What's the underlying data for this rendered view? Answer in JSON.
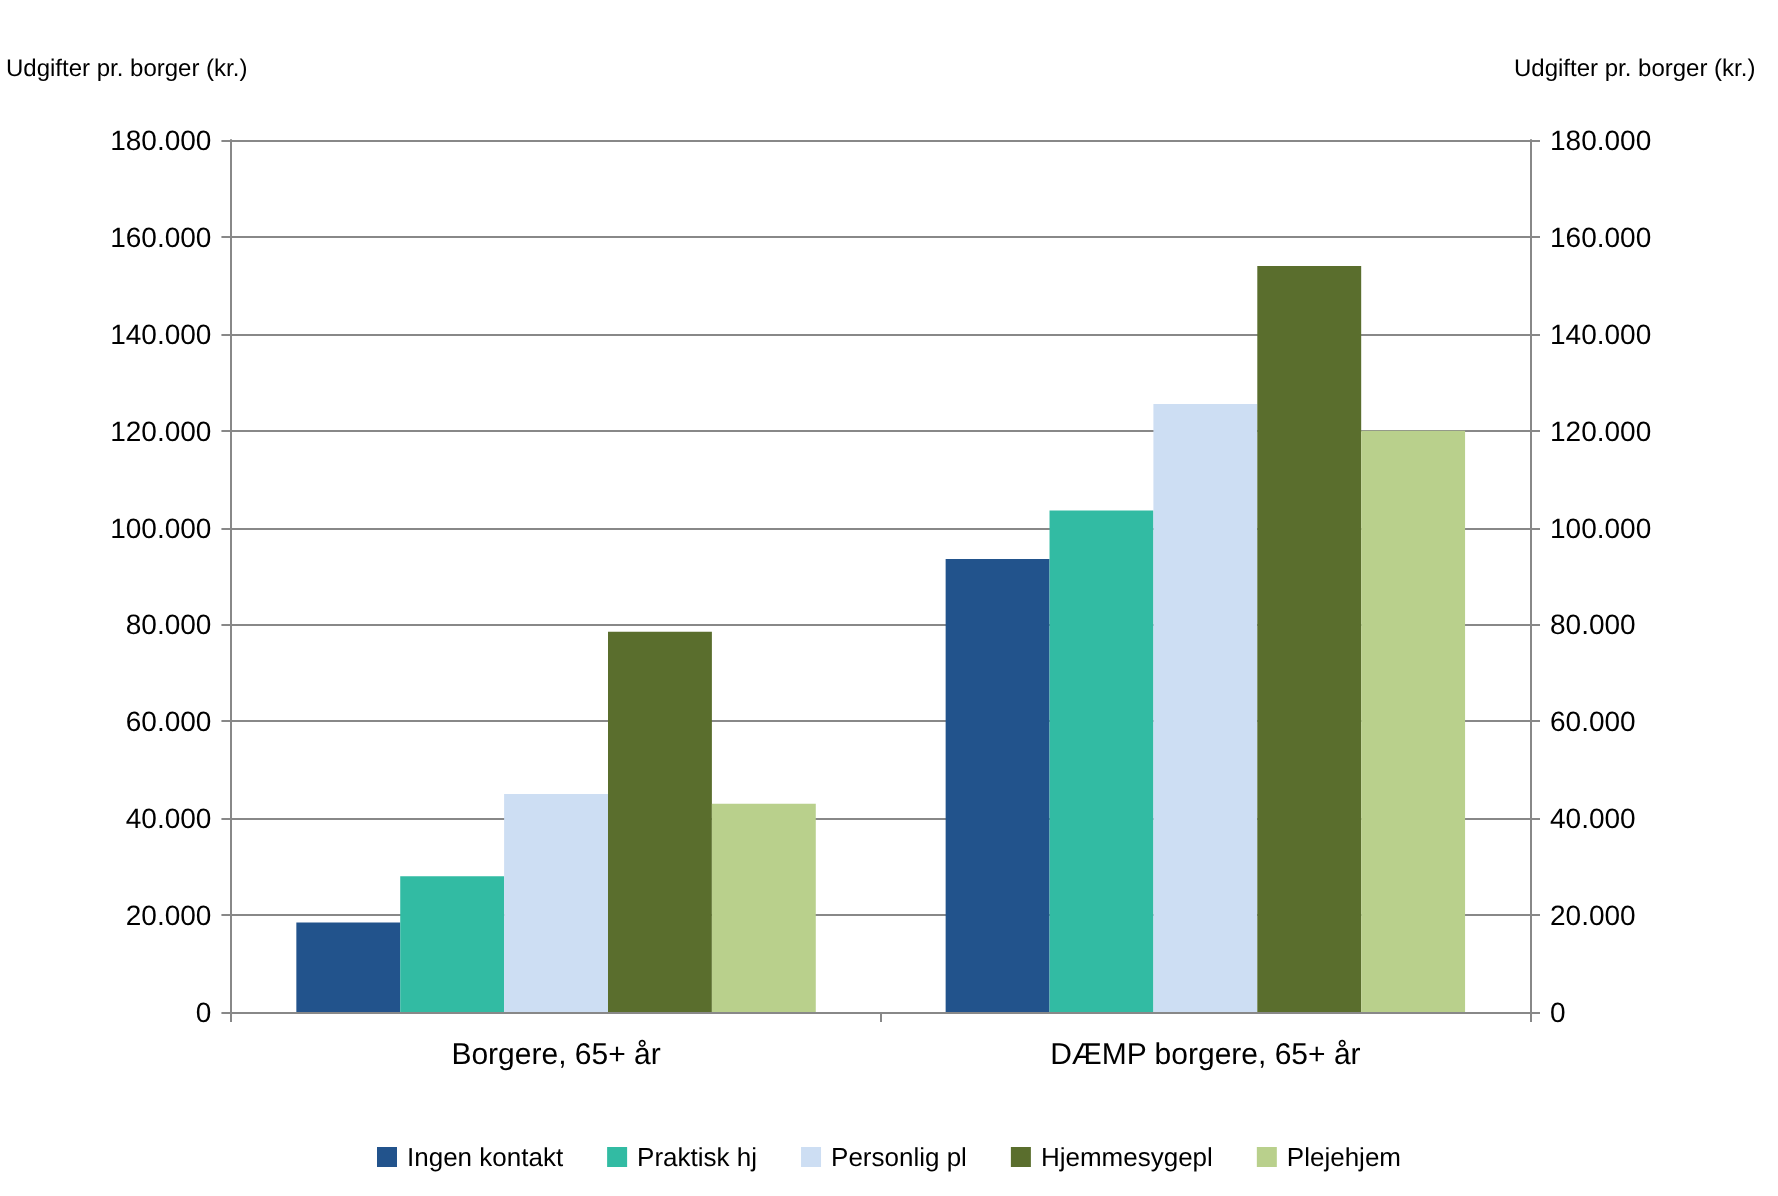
{
  "chart_data": {
    "type": "bar",
    "ylabel": "Udgifter pr. borger (kr.)",
    "y2label": "Udgifter pr. borger (kr.)",
    "categories": [
      "Borgere, 65+ år",
      "DÆMP borgere, 65+ år"
    ],
    "series": [
      {
        "name": "Ingen kontakt",
        "color": "#22538c",
        "values": [
          18500,
          93500
        ]
      },
      {
        "name": "Praktisk hj",
        "color": "#32bba3",
        "values": [
          28000,
          103500
        ]
      },
      {
        "name": "Personlig pl",
        "color": "#cddef3",
        "values": [
          45000,
          125500
        ]
      },
      {
        "name": "Hjemmesygepl",
        "color": "#5a6e2d",
        "values": [
          78500,
          154000
        ]
      },
      {
        "name": "Plejehjem",
        "color": "#b9d08c",
        "values": [
          43000,
          120000
        ]
      }
    ],
    "ylim": [
      0,
      180000
    ],
    "yticks": [
      0,
      {
        "value": 20000,
        "label": "20.000"
      },
      {
        "value": 40000,
        "label": "40.000"
      },
      {
        "value": 60000,
        "label": "60.000"
      },
      {
        "value": 80000,
        "label": "80.000"
      },
      {
        "value": 100000,
        "label": "100.000"
      },
      {
        "value": 120000,
        "label": "120.000"
      },
      {
        "value": 140000,
        "label": "140.000"
      },
      {
        "value": 160000,
        "label": "160.000"
      },
      {
        "value": 180000,
        "label": "180.000"
      }
    ],
    "y2lim": [
      0,
      180000
    ],
    "y2ticks": [
      0,
      {
        "value": 20000,
        "label": "20.000"
      },
      {
        "value": 40000,
        "label": "40.000"
      },
      {
        "value": 60000,
        "label": "60.000"
      },
      {
        "value": 80000,
        "label": "80.000"
      },
      {
        "value": 100000,
        "label": "100.000"
      },
      {
        "value": 120000,
        "label": "120.000"
      },
      {
        "value": 140000,
        "label": "140.000"
      },
      {
        "value": 160000,
        "label": "160.000"
      },
      {
        "value": 180000,
        "label": "180.000"
      }
    ],
    "grid": "y",
    "legend": "bottom"
  }
}
